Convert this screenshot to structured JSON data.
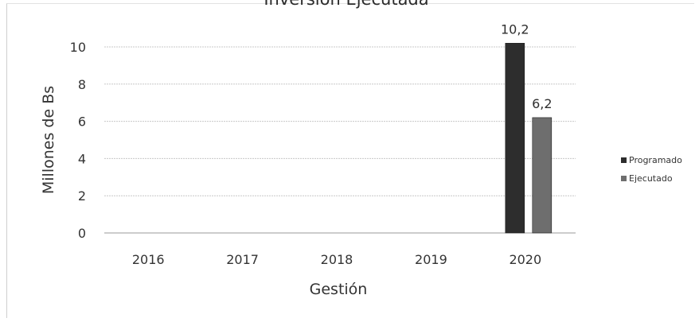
{
  "chart_data": {
    "type": "bar",
    "title": "Inversión Ejecutada",
    "xlabel": "Gestión",
    "ylabel": "Millones de Bs",
    "categories": [
      "2016",
      "2017",
      "2018",
      "2019",
      "2020"
    ],
    "series": [
      {
        "name": "Programado",
        "values": [
          0,
          0,
          0,
          0,
          10.2
        ],
        "labels": [
          "",
          "",
          "",
          "",
          "10,2"
        ],
        "color": "#2d2d2d"
      },
      {
        "name": "Ejecutado",
        "values": [
          0,
          0,
          0,
          0,
          6.2
        ],
        "labels": [
          "",
          "",
          "",
          "",
          "6,2"
        ],
        "color": "#6e6e6e"
      }
    ],
    "yticks": [
      0,
      2,
      4,
      6,
      8,
      10
    ],
    "ylim": [
      0,
      10.6
    ],
    "grid": true,
    "legend_position": "right"
  }
}
